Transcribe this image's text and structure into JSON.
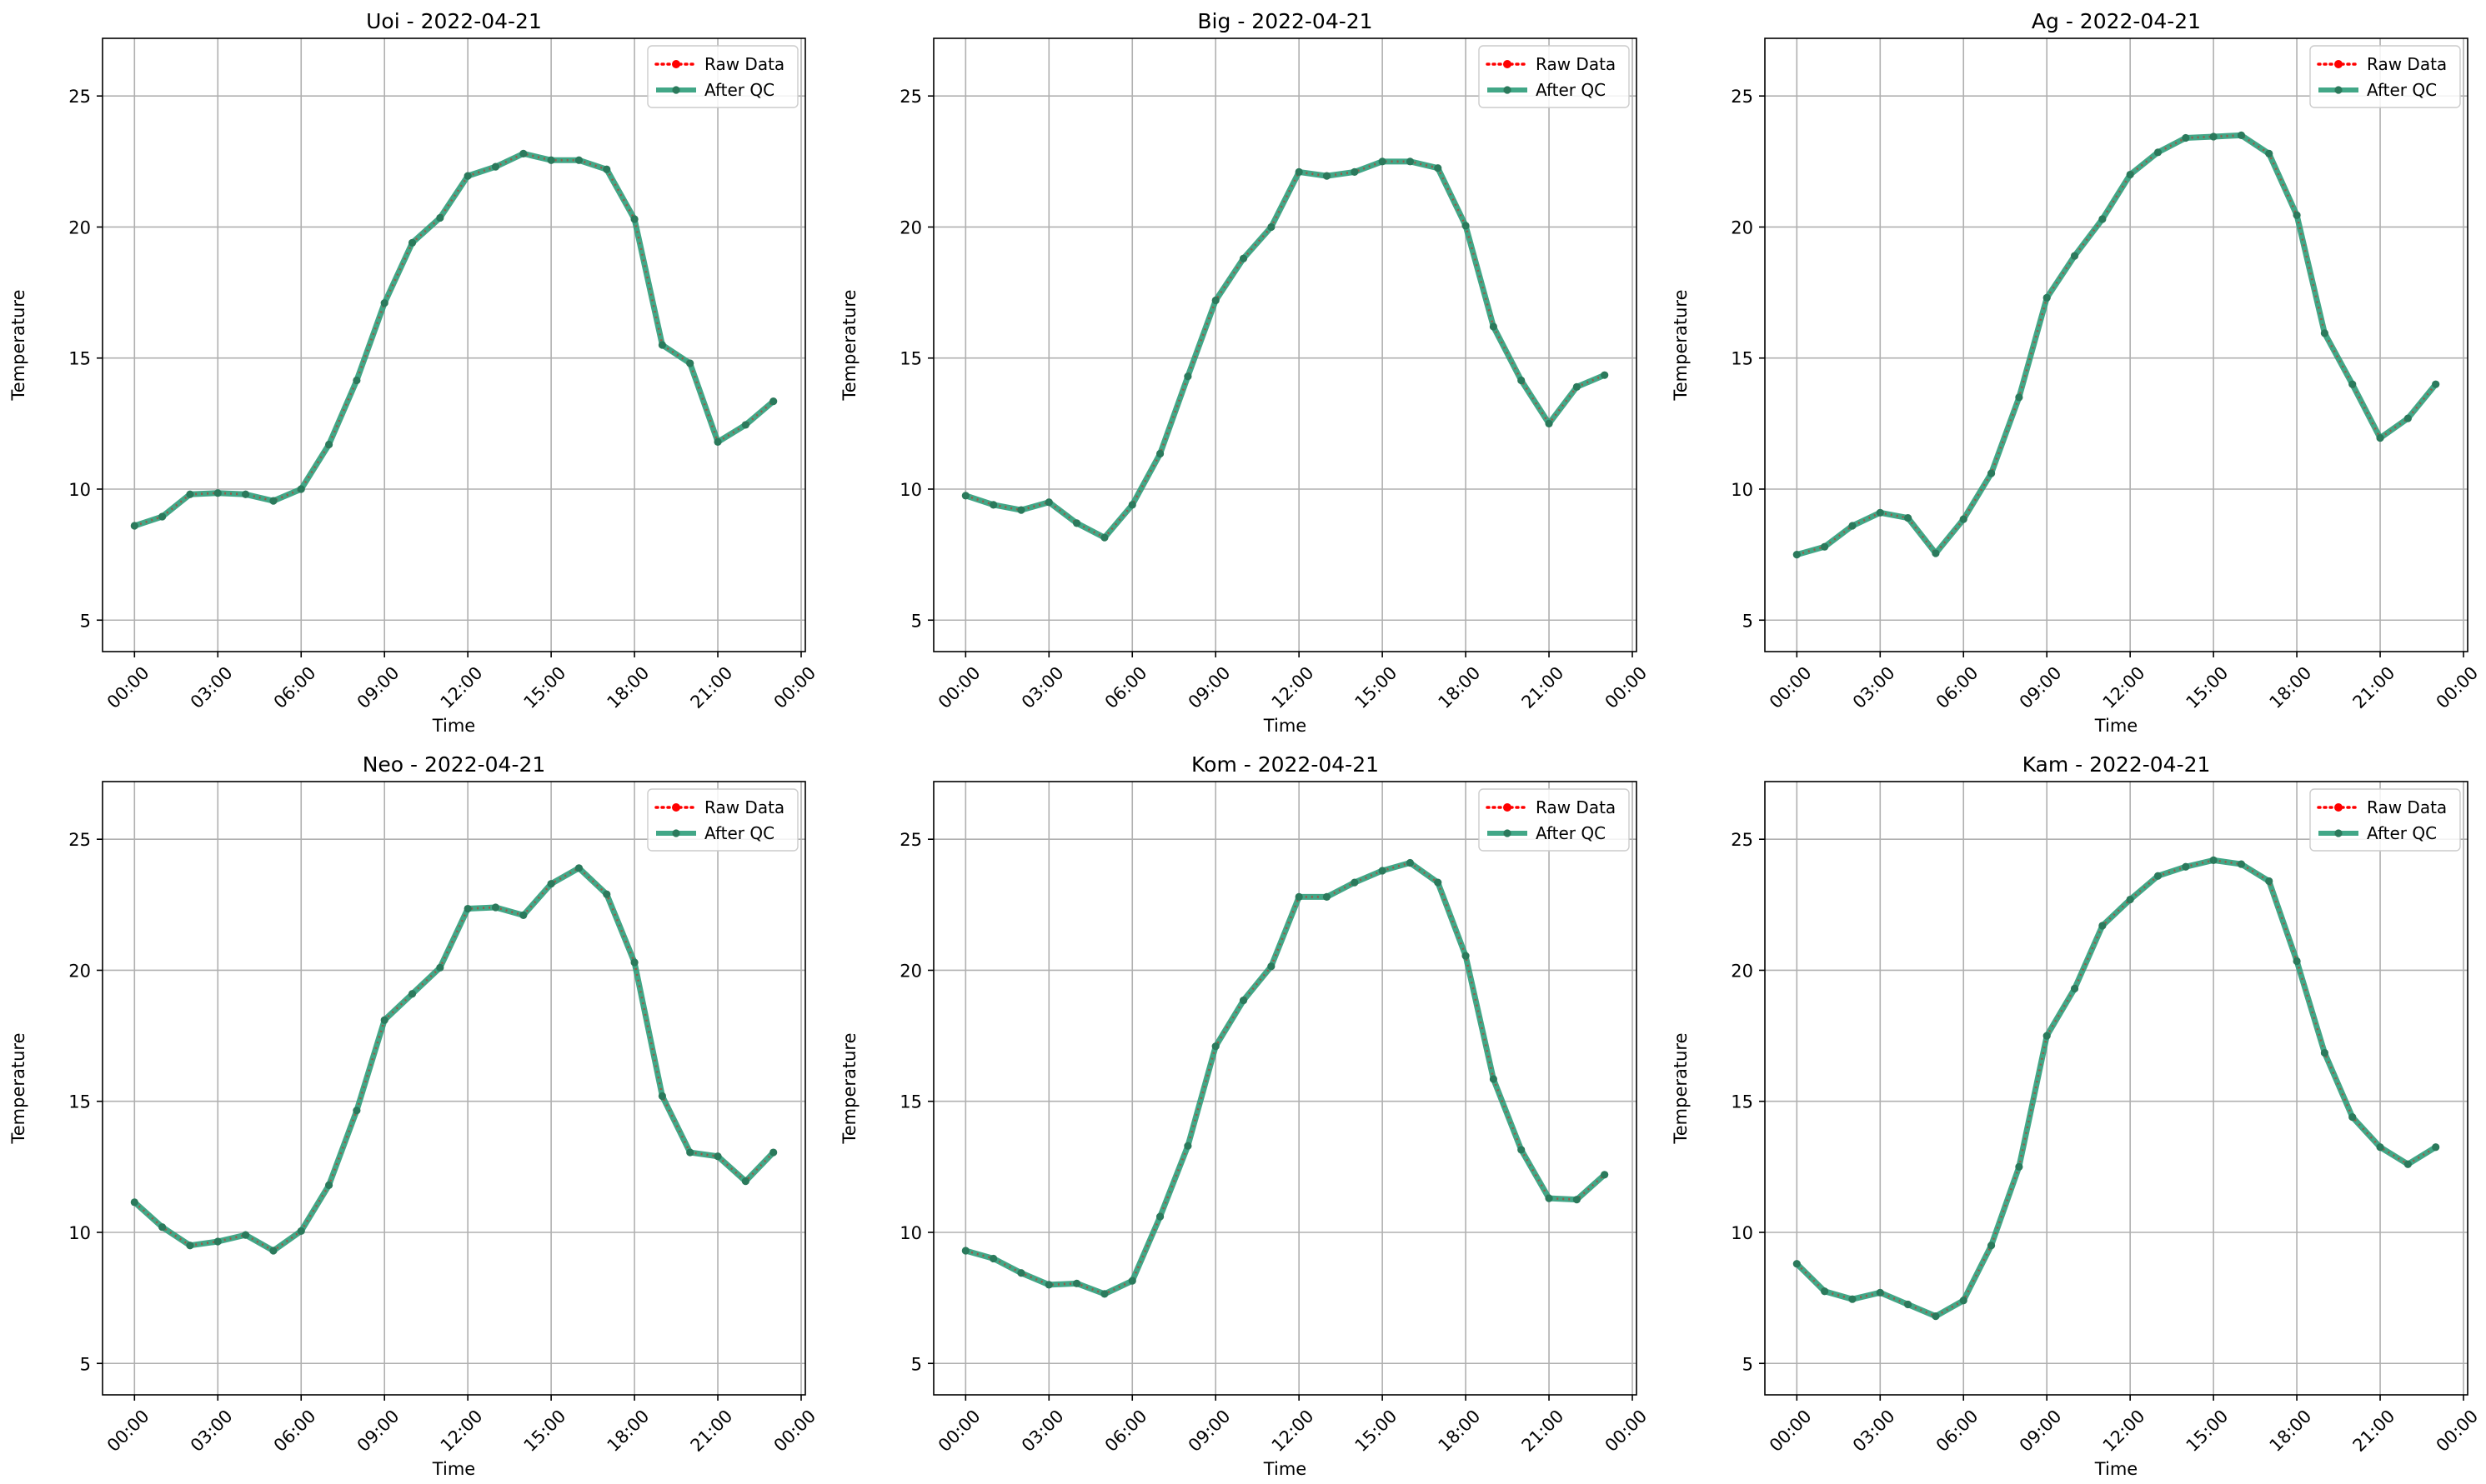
{
  "figure": {
    "background": "#ffffff"
  },
  "styles": {
    "raw_color": "#ff0000",
    "qc_color": "#2e9d7a",
    "qc_marker_color": "#2b7a5c",
    "grid_color": "#b0b0b0"
  },
  "chart_data": [
    {
      "type": "line",
      "title": "Uoi - 2022-04-21",
      "xlabel": "Time",
      "ylabel": "Temperature",
      "xlim": [
        -1.15,
        24.15
      ],
      "ylim": [
        3.8,
        27.2
      ],
      "xticks": [
        "00:00",
        "03:00",
        "06:00",
        "09:00",
        "12:00",
        "15:00",
        "18:00",
        "21:00",
        "00:00"
      ],
      "yticks": [
        5,
        10,
        15,
        20,
        25
      ],
      "grid": true,
      "legend_position": "top-right",
      "x": [
        "00:00",
        "01:00",
        "02:00",
        "03:00",
        "04:00",
        "05:00",
        "06:00",
        "07:00",
        "08:00",
        "09:00",
        "10:00",
        "11:00",
        "12:00",
        "13:00",
        "14:00",
        "15:00",
        "16:00",
        "17:00",
        "18:00",
        "19:00",
        "20:00",
        "21:00",
        "22:00",
        "23:00"
      ],
      "series": [
        {
          "name": "Raw Data",
          "values": [
            8.6,
            8.95,
            9.8,
            9.85,
            9.8,
            9.55,
            10.0,
            11.7,
            14.15,
            17.1,
            19.4,
            20.35,
            21.95,
            22.3,
            22.8,
            22.55,
            22.55,
            22.2,
            20.3,
            15.5,
            14.8,
            11.8,
            12.45,
            13.35
          ]
        },
        {
          "name": "After QC",
          "values": [
            8.6,
            8.95,
            9.8,
            9.85,
            9.8,
            9.55,
            10.0,
            11.7,
            14.15,
            17.1,
            19.4,
            20.35,
            21.95,
            22.3,
            22.8,
            22.55,
            22.55,
            22.2,
            20.3,
            15.5,
            14.8,
            11.8,
            12.45,
            13.35
          ]
        }
      ]
    },
    {
      "type": "line",
      "title": "Big - 2022-04-21",
      "xlabel": "Time",
      "ylabel": "Temperature",
      "xlim": [
        -1.15,
        24.15
      ],
      "ylim": [
        3.8,
        27.2
      ],
      "xticks": [
        "00:00",
        "03:00",
        "06:00",
        "09:00",
        "12:00",
        "15:00",
        "18:00",
        "21:00",
        "00:00"
      ],
      "yticks": [
        5,
        10,
        15,
        20,
        25
      ],
      "grid": true,
      "legend_position": "top-right",
      "x": [
        "00:00",
        "01:00",
        "02:00",
        "03:00",
        "04:00",
        "05:00",
        "06:00",
        "07:00",
        "08:00",
        "09:00",
        "10:00",
        "11:00",
        "12:00",
        "13:00",
        "14:00",
        "15:00",
        "16:00",
        "17:00",
        "18:00",
        "19:00",
        "20:00",
        "21:00",
        "22:00",
        "23:00"
      ],
      "series": [
        {
          "name": "Raw Data",
          "values": [
            9.75,
            9.4,
            9.2,
            9.5,
            8.7,
            8.15,
            9.4,
            11.35,
            14.3,
            17.2,
            18.8,
            20.0,
            22.1,
            21.95,
            22.1,
            22.5,
            22.5,
            22.25,
            20.05,
            16.2,
            14.15,
            12.5,
            13.9,
            14.35
          ]
        },
        {
          "name": "After QC",
          "values": [
            9.75,
            9.4,
            9.2,
            9.5,
            8.7,
            8.15,
            9.4,
            11.35,
            14.3,
            17.2,
            18.8,
            20.0,
            22.1,
            21.95,
            22.1,
            22.5,
            22.5,
            22.25,
            20.05,
            16.2,
            14.15,
            12.5,
            13.9,
            14.35
          ]
        }
      ]
    },
    {
      "type": "line",
      "title": "Ag - 2022-04-21",
      "xlabel": "Time",
      "ylabel": "Temperature",
      "xlim": [
        -1.15,
        24.15
      ],
      "ylim": [
        3.8,
        27.2
      ],
      "xticks": [
        "00:00",
        "03:00",
        "06:00",
        "09:00",
        "12:00",
        "15:00",
        "18:00",
        "21:00",
        "00:00"
      ],
      "yticks": [
        5,
        10,
        15,
        20,
        25
      ],
      "grid": true,
      "legend_position": "top-right",
      "x": [
        "00:00",
        "01:00",
        "02:00",
        "03:00",
        "04:00",
        "05:00",
        "06:00",
        "07:00",
        "08:00",
        "09:00",
        "10:00",
        "11:00",
        "12:00",
        "13:00",
        "14:00",
        "15:00",
        "16:00",
        "17:00",
        "18:00",
        "19:00",
        "20:00",
        "21:00",
        "22:00",
        "23:00"
      ],
      "series": [
        {
          "name": "Raw Data",
          "values": [
            7.5,
            7.8,
            8.6,
            9.1,
            8.9,
            7.55,
            8.85,
            10.6,
            13.5,
            17.3,
            18.9,
            20.3,
            22.0,
            22.85,
            23.4,
            23.45,
            23.5,
            22.8,
            20.45,
            15.95,
            14.0,
            11.95,
            12.7,
            14.0
          ]
        },
        {
          "name": "After QC",
          "values": [
            7.5,
            7.8,
            8.6,
            9.1,
            8.9,
            7.55,
            8.85,
            10.6,
            13.5,
            17.3,
            18.9,
            20.3,
            22.0,
            22.85,
            23.4,
            23.45,
            23.5,
            22.8,
            20.45,
            15.95,
            14.0,
            11.95,
            12.7,
            14.0
          ]
        }
      ]
    },
    {
      "type": "line",
      "title": "Neo - 2022-04-21",
      "xlabel": "Time",
      "ylabel": "Temperature",
      "xlim": [
        -1.15,
        24.15
      ],
      "ylim": [
        3.8,
        27.2
      ],
      "xticks": [
        "00:00",
        "03:00",
        "06:00",
        "09:00",
        "12:00",
        "15:00",
        "18:00",
        "21:00",
        "00:00"
      ],
      "yticks": [
        5,
        10,
        15,
        20,
        25
      ],
      "grid": true,
      "legend_position": "top-right",
      "x": [
        "00:00",
        "01:00",
        "02:00",
        "03:00",
        "04:00",
        "05:00",
        "06:00",
        "07:00",
        "08:00",
        "09:00",
        "10:00",
        "11:00",
        "12:00",
        "13:00",
        "14:00",
        "15:00",
        "16:00",
        "17:00",
        "18:00",
        "19:00",
        "20:00",
        "21:00",
        "22:00",
        "23:00"
      ],
      "series": [
        {
          "name": "Raw Data",
          "values": [
            11.15,
            10.2,
            9.5,
            9.65,
            9.9,
            9.3,
            10.05,
            11.8,
            14.65,
            18.1,
            19.1,
            20.1,
            22.35,
            22.4,
            22.1,
            23.3,
            23.9,
            22.9,
            20.3,
            15.2,
            13.05,
            12.9,
            11.95,
            13.05
          ]
        },
        {
          "name": "After QC",
          "values": [
            11.15,
            10.2,
            9.5,
            9.65,
            9.9,
            9.3,
            10.05,
            11.8,
            14.65,
            18.1,
            19.1,
            20.1,
            22.35,
            22.4,
            22.1,
            23.3,
            23.9,
            22.9,
            20.3,
            15.2,
            13.05,
            12.9,
            11.95,
            13.05
          ]
        }
      ]
    },
    {
      "type": "line",
      "title": "Kom - 2022-04-21",
      "xlabel": "Time",
      "ylabel": "Temperature",
      "xlim": [
        -1.15,
        24.15
      ],
      "ylim": [
        3.8,
        27.2
      ],
      "xticks": [
        "00:00",
        "03:00",
        "06:00",
        "09:00",
        "12:00",
        "15:00",
        "18:00",
        "21:00",
        "00:00"
      ],
      "yticks": [
        5,
        10,
        15,
        20,
        25
      ],
      "grid": true,
      "legend_position": "top-right",
      "x": [
        "00:00",
        "01:00",
        "02:00",
        "03:00",
        "04:00",
        "05:00",
        "06:00",
        "07:00",
        "08:00",
        "09:00",
        "10:00",
        "11:00",
        "12:00",
        "13:00",
        "14:00",
        "15:00",
        "16:00",
        "17:00",
        "18:00",
        "19:00",
        "20:00",
        "21:00",
        "22:00",
        "23:00"
      ],
      "series": [
        {
          "name": "Raw Data",
          "values": [
            9.3,
            9.0,
            8.45,
            8.0,
            8.05,
            7.65,
            8.15,
            10.6,
            13.3,
            17.1,
            18.85,
            20.15,
            22.8,
            22.8,
            23.35,
            23.8,
            24.1,
            23.35,
            20.55,
            15.85,
            13.15,
            11.3,
            11.25,
            12.2
          ]
        },
        {
          "name": "After QC",
          "values": [
            9.3,
            9.0,
            8.45,
            8.0,
            8.05,
            7.65,
            8.15,
            10.6,
            13.3,
            17.1,
            18.85,
            20.15,
            22.8,
            22.8,
            23.35,
            23.8,
            24.1,
            23.35,
            20.55,
            15.85,
            13.15,
            11.3,
            11.25,
            12.2
          ]
        }
      ]
    },
    {
      "type": "line",
      "title": "Kam - 2022-04-21",
      "xlabel": "Time",
      "ylabel": "Temperature",
      "xlim": [
        -1.15,
        24.15
      ],
      "ylim": [
        3.8,
        27.2
      ],
      "xticks": [
        "00:00",
        "03:00",
        "06:00",
        "09:00",
        "12:00",
        "15:00",
        "18:00",
        "21:00",
        "00:00"
      ],
      "yticks": [
        5,
        10,
        15,
        20,
        25
      ],
      "grid": true,
      "legend_position": "top-right",
      "x": [
        "00:00",
        "01:00",
        "02:00",
        "03:00",
        "04:00",
        "05:00",
        "06:00",
        "07:00",
        "08:00",
        "09:00",
        "10:00",
        "11:00",
        "12:00",
        "13:00",
        "14:00",
        "15:00",
        "16:00",
        "17:00",
        "18:00",
        "19:00",
        "20:00",
        "21:00",
        "22:00",
        "23:00"
      ],
      "series": [
        {
          "name": "Raw Data",
          "values": [
            8.8,
            7.75,
            7.45,
            7.7,
            7.25,
            6.8,
            7.4,
            9.5,
            12.5,
            17.5,
            19.3,
            21.7,
            22.7,
            23.6,
            23.95,
            24.2,
            24.05,
            23.4,
            20.35,
            16.85,
            14.4,
            13.25,
            12.6,
            13.25
          ]
        },
        {
          "name": "After QC",
          "values": [
            8.8,
            7.75,
            7.45,
            7.7,
            7.25,
            6.8,
            7.4,
            9.5,
            12.5,
            17.5,
            19.3,
            21.7,
            22.7,
            23.6,
            23.95,
            24.2,
            24.05,
            23.4,
            20.35,
            16.85,
            14.4,
            13.25,
            12.6,
            13.25
          ]
        }
      ]
    }
  ]
}
